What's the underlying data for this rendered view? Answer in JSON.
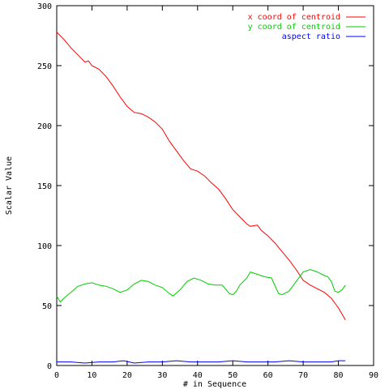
{
  "chart_data": {
    "type": "line",
    "xlabel": "# in Sequence",
    "ylabel": "Scalar Value",
    "xlim": [
      0,
      90
    ],
    "ylim": [
      0,
      300
    ],
    "xticks": [
      0,
      10,
      20,
      30,
      40,
      50,
      60,
      70,
      80,
      90
    ],
    "yticks": [
      0,
      50,
      100,
      150,
      200,
      250,
      300
    ],
    "grid": false,
    "legend_position": "top-right",
    "series": [
      {
        "name": "x coord of centroid",
        "color": "#ff0000",
        "x": [
          0,
          2,
          4,
          6,
          8,
          9,
          10,
          12,
          14,
          16,
          18,
          20,
          22,
          24,
          26,
          28,
          30,
          32,
          34,
          36,
          38,
          40,
          42,
          44,
          46,
          48,
          50,
          52,
          54,
          55,
          57,
          58,
          60,
          62,
          64,
          66,
          68,
          70,
          72,
          74,
          76,
          78,
          80,
          82
        ],
        "values": [
          278,
          272,
          265,
          259,
          253,
          254,
          250,
          247,
          241,
          233,
          224,
          216,
          211,
          210,
          207,
          203,
          197,
          187,
          179,
          171,
          164,
          162,
          158,
          152,
          147,
          139,
          130,
          124,
          118,
          116,
          117,
          113,
          108,
          102,
          95,
          88,
          80,
          71,
          67,
          64,
          61,
          56,
          48,
          38
        ]
      },
      {
        "name": "y coord of centroid",
        "color": "#00cc00",
        "x": [
          0,
          1,
          2,
          4,
          6,
          8,
          10,
          12,
          14,
          16,
          18,
          20,
          22,
          24,
          26,
          28,
          30,
          32,
          33,
          35,
          37,
          39,
          41,
          43,
          45,
          47,
          49,
          50,
          51,
          52,
          54,
          55,
          57,
          59,
          61,
          63,
          64,
          66,
          68,
          70,
          72,
          74,
          76,
          77,
          78,
          79,
          80,
          81,
          82
        ],
        "values": [
          58,
          53,
          56,
          61,
          66,
          68,
          69,
          67,
          66,
          64,
          61,
          63,
          68,
          71,
          70,
          67,
          65,
          60,
          58,
          63,
          70,
          73,
          71,
          68,
          67,
          67,
          60,
          59,
          62,
          67,
          73,
          78,
          76,
          74,
          73,
          60,
          59,
          62,
          70,
          78,
          80,
          78,
          75,
          74,
          70,
          62,
          61,
          63,
          67
        ]
      },
      {
        "name": "aspect ratio",
        "color": "#0000ff",
        "x": [
          0,
          4,
          8,
          12,
          16,
          19,
          22,
          26,
          30,
          34,
          38,
          42,
          46,
          50,
          54,
          58,
          62,
          66,
          70,
          74,
          78,
          80,
          82
        ],
        "values": [
          3,
          3,
          2,
          3,
          3,
          4,
          2,
          3,
          3,
          4,
          3,
          3,
          3,
          4,
          3,
          3,
          3,
          4,
          3,
          3,
          3,
          4,
          4
        ]
      }
    ]
  }
}
